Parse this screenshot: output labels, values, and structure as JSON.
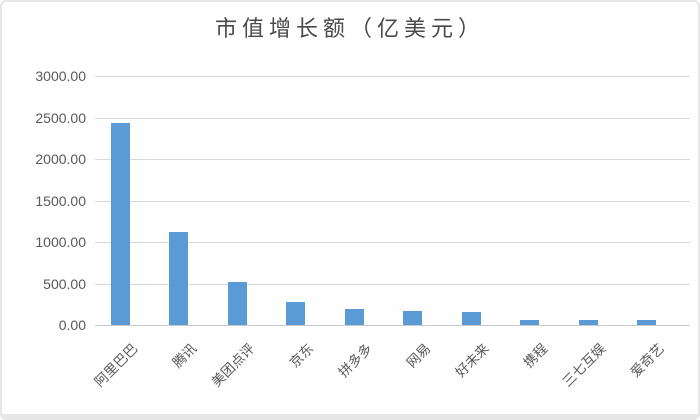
{
  "page": {
    "background": "#fefefe",
    "frame_border_color": "#e7e7e7"
  },
  "chart_data": {
    "type": "bar",
    "title": "市值增长额（亿美元）",
    "categories": [
      "阿里巴巴",
      "腾讯",
      "美团点评",
      "京东",
      "拼多多",
      "网易",
      "好未来",
      "携程",
      "三七互娱",
      "爱奇艺"
    ],
    "values": [
      2430,
      1120,
      520,
      275,
      190,
      165,
      162,
      55,
      60,
      55
    ],
    "xlabel": "",
    "ylabel": "",
    "ylim": [
      0,
      3000
    ],
    "ytick_step": 500,
    "ytick_values": [
      0,
      500,
      1000,
      1500,
      2000,
      2500,
      3000
    ],
    "ytick_labels": [
      "0.00",
      "500.00",
      "1000.00",
      "1500.00",
      "2000.00",
      "2500.00",
      "3000.00"
    ],
    "grid": true,
    "legend_position": "none",
    "bar_color": "#5b9bd5",
    "gridline_color": "#d8d8d8",
    "axis_label_color": "#595959",
    "title_color": "#4a4a4a"
  }
}
